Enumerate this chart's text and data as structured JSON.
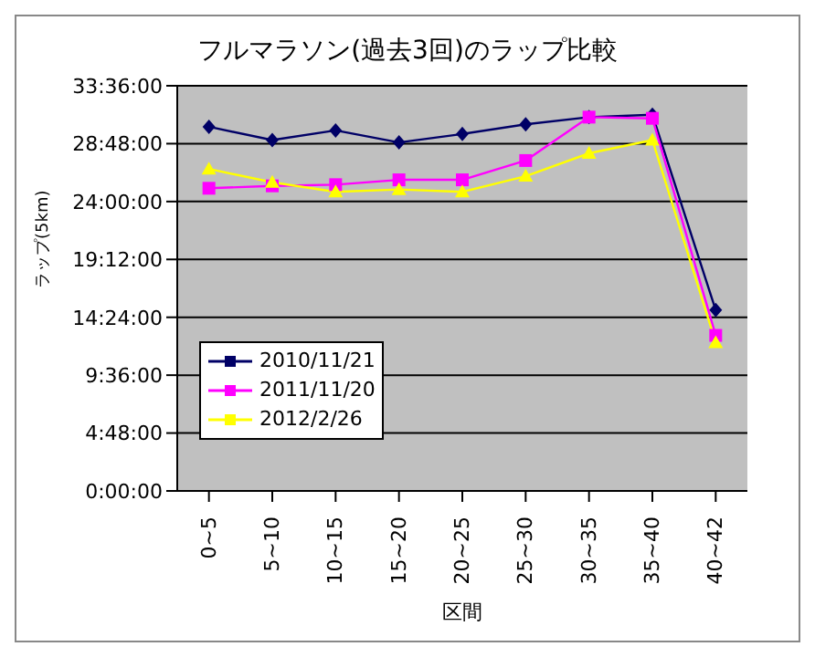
{
  "chart_data": {
    "type": "line",
    "title": "フルマラソン(過去3回)のラップ比較",
    "xlabel": "区間",
    "ylabel": "ラップ(5km)",
    "categories": [
      "0~5",
      "5~10",
      "10~15",
      "15~20",
      "20~25",
      "25~30",
      "30~35",
      "35~40",
      "40~42"
    ],
    "series": [
      {
        "name": "2010/11/21",
        "color": "#000066",
        "marker": "diamond",
        "values": [
          30.2,
          29.1,
          29.9,
          28.9,
          29.6,
          30.4,
          31.0,
          31.2,
          15.0
        ]
      },
      {
        "name": "2011/11/20",
        "color": "#ff00ff",
        "marker": "square",
        "values": [
          25.1,
          25.3,
          25.4,
          25.8,
          25.8,
          27.4,
          31.0,
          30.9,
          12.9
        ]
      },
      {
        "name": "2012/2/26",
        "color": "#ffff00",
        "marker": "triangle",
        "values": [
          26.7,
          25.6,
          24.8,
          25.0,
          24.8,
          26.1,
          28.0,
          29.1,
          12.3
        ]
      }
    ],
    "ylim": [
      0,
      33.6
    ],
    "yticks": [
      {
        "value": 0,
        "label": "0:00:00"
      },
      {
        "value": 4.8,
        "label": "4:48:00"
      },
      {
        "value": 9.6,
        "label": "9:36:00"
      },
      {
        "value": 14.4,
        "label": "14:24:00"
      },
      {
        "value": 19.2,
        "label": "19:12:00"
      },
      {
        "value": 24,
        "label": "24:00:00"
      },
      {
        "value": 28.8,
        "label": "28:48:00"
      },
      {
        "value": 33.6,
        "label": "33:36:00"
      }
    ],
    "grid": "y",
    "legend": "bottom left"
  }
}
